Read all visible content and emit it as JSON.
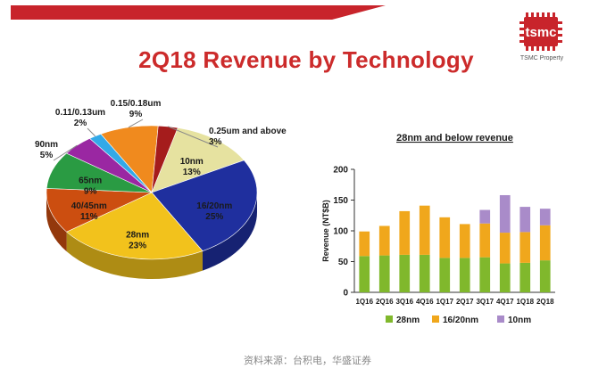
{
  "header": {
    "title": "2Q18 Revenue by Technology",
    "logo_text": "tsmc",
    "logo_subtext": "TSMC Property"
  },
  "caption": "资料来源：台积电，华盛证券",
  "colors": {
    "title": "#cc2b2b",
    "brand_red": "#c8242b",
    "green_28nm": "#80b82c",
    "orange_16_20nm": "#f0a71c",
    "purple_10nm": "#a98bc9"
  },
  "chart_data": [
    {
      "type": "pie",
      "slices": [
        {
          "label": "10nm",
          "value": 13,
          "text": "13%"
        },
        {
          "label": "16/20nm",
          "value": 25,
          "text": "25%"
        },
        {
          "label": "28nm",
          "value": 23,
          "text": "23%"
        },
        {
          "label": "40/45nm",
          "value": 11,
          "text": "11%"
        },
        {
          "label": "65nm",
          "value": 9,
          "text": "9%"
        },
        {
          "label": "90nm",
          "value": 5,
          "text": "5%"
        },
        {
          "label": "0.11/0.13um",
          "value": 2,
          "text": "2%"
        },
        {
          "label": "0.15/0.18um",
          "value": 9,
          "text": "9%"
        },
        {
          "label": "0.25um and above",
          "value": 3,
          "text": "3%"
        }
      ],
      "colors": [
        "#e6e2a0",
        "#1f2f9e",
        "#f2c21c",
        "#cc4e10",
        "#2a9b43",
        "#9a27a2",
        "#33a9e8",
        "#f08a1e",
        "#a51c1c"
      ]
    },
    {
      "type": "bar",
      "stacked": true,
      "title": "28nm and below revenue",
      "ylabel": "Revenue (NT$B)",
      "xlabel": "",
      "ylim": [
        0,
        200
      ],
      "yticks": [
        0,
        50,
        100,
        150,
        200
      ],
      "categories": [
        "1Q16",
        "2Q16",
        "3Q16",
        "4Q16",
        "1Q17",
        "2Q17",
        "3Q17",
        "4Q17",
        "1Q18",
        "2Q18"
      ],
      "series": [
        {
          "name": "28nm",
          "color": "#80b82c",
          "values": [
            59,
            60,
            61,
            61,
            56,
            56,
            57,
            47,
            48,
            52
          ]
        },
        {
          "name": "16/20nm",
          "color": "#f0a71c",
          "values": [
            40,
            48,
            71,
            80,
            66,
            55,
            55,
            50,
            50,
            57
          ]
        },
        {
          "name": "10nm",
          "color": "#a98bc9",
          "values": [
            0,
            0,
            0,
            0,
            0,
            0,
            22,
            61,
            41,
            27
          ]
        }
      ],
      "legend_position": "bottom"
    }
  ]
}
